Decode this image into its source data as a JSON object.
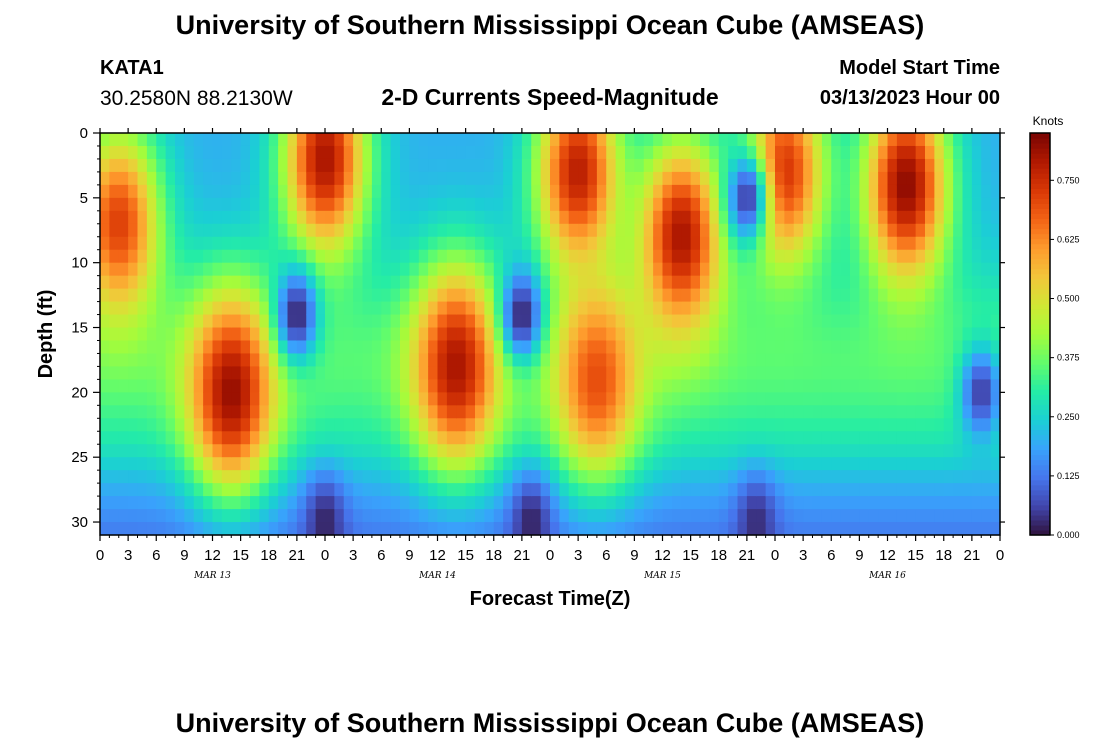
{
  "header": {
    "title": "University of Southern Mississippi Ocean Cube (AMSEAS)",
    "station_id": "KATA1",
    "station_coords": "30.2580N  88.2130W",
    "chart_heading": "2-D Currents Speed-Magnitude",
    "model_start_label": "Model Start Time",
    "model_start_value": "03/13/2023 Hour 00"
  },
  "footer": {
    "title": "University of Southern Mississippi Ocean Cube (AMSEAS)"
  },
  "chart_data": {
    "type": "heatmap",
    "title": "2-D Currents Speed-Magnitude",
    "xlabel": "Forecast Time(Z)",
    "ylabel": "Depth (ft)",
    "x_range_hours": [
      0,
      96
    ],
    "y_range_ft": [
      0,
      31
    ],
    "x_tick_hours": [
      0,
      3,
      6,
      9,
      12,
      15,
      18,
      21,
      24,
      27,
      30,
      33,
      36,
      39,
      42,
      45,
      48,
      51,
      54,
      57,
      60,
      63,
      66,
      69,
      72,
      75,
      78,
      81,
      84,
      87,
      90,
      93,
      96
    ],
    "x_tick_labels": [
      "0",
      "3",
      "6",
      "9",
      "12",
      "15",
      "18",
      "21",
      "0",
      "3",
      "6",
      "9",
      "12",
      "15",
      "18",
      "21",
      "0",
      "3",
      "6",
      "9",
      "12",
      "15",
      "18",
      "21",
      "0",
      "3",
      "6",
      "9",
      "12",
      "15",
      "18",
      "21",
      "0"
    ],
    "day_labels": [
      {
        "label": "MAR 13",
        "hour": 12
      },
      {
        "label": "MAR 14",
        "hour": 36
      },
      {
        "label": "MAR 15",
        "hour": 60
      },
      {
        "label": "MAR 16",
        "hour": 84
      }
    ],
    "y_ticks": [
      0,
      5,
      10,
      15,
      20,
      25,
      30
    ],
    "y_tick_labels": [
      "0",
      "5",
      "10",
      "15",
      "20",
      "25",
      "30"
    ],
    "colorbar": {
      "unit": "Knots",
      "range": [
        0,
        0.85
      ],
      "ticks": [
        0.0,
        0.125,
        0.25,
        0.375,
        0.5,
        0.625,
        0.75
      ],
      "tick_labels": [
        "0.000",
        "0.125",
        "0.250",
        "0.375",
        "0.500",
        "0.625",
        "0.750"
      ],
      "colormap": [
        "#30123b",
        "#4145ab",
        "#4675ed",
        "#39a2fc",
        "#1bcfd4",
        "#24eca6",
        "#61fc6c",
        "#a4fc3b",
        "#d1e834",
        "#f3c63a",
        "#fe9b2d",
        "#f36315",
        "#d93806",
        "#b11901",
        "#7a0402"
      ]
    },
    "high_speed_zones": [
      {
        "hour": 2,
        "depth": 7,
        "value": 0.72
      },
      {
        "hour": 14,
        "depth": 20,
        "value": 0.82
      },
      {
        "hour": 24,
        "depth": 2,
        "value": 0.8
      },
      {
        "hour": 38,
        "depth": 18,
        "value": 0.8
      },
      {
        "hour": 51,
        "depth": 3,
        "value": 0.78
      },
      {
        "hour": 53,
        "depth": 19,
        "value": 0.7
      },
      {
        "hour": 62,
        "depth": 8,
        "value": 0.8
      },
      {
        "hour": 73,
        "depth": 3,
        "value": 0.74
      },
      {
        "hour": 86,
        "depth": 4,
        "value": 0.83
      }
    ],
    "low_speed_zones": [
      {
        "hour": 21,
        "depth": 14,
        "value": 0.02
      },
      {
        "hour": 45,
        "depth": 14,
        "value": 0.02
      },
      {
        "hour": 69,
        "depth": 5,
        "value": 0.05
      },
      {
        "hour": 24,
        "depth": 30,
        "value": 0.02
      },
      {
        "hour": 46,
        "depth": 30,
        "value": 0.02
      },
      {
        "hour": 70,
        "depth": 30,
        "value": 0.03
      },
      {
        "hour": 94,
        "depth": 20,
        "value": 0.05
      }
    ]
  }
}
